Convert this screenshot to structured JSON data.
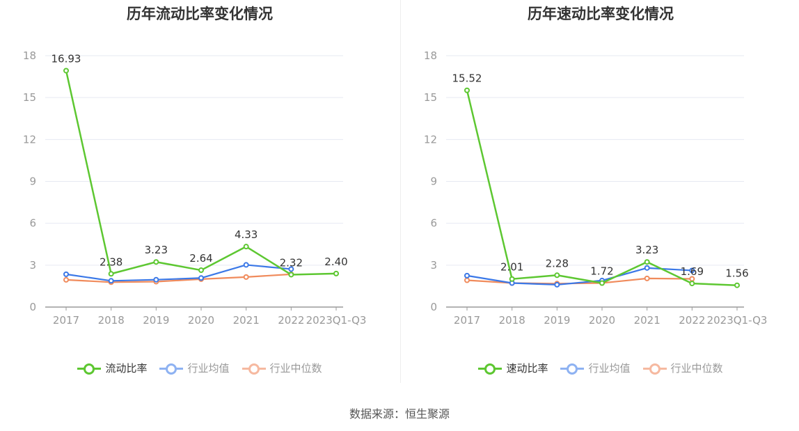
{
  "charts": [
    {
      "title": "历年流动比率变化情况",
      "legend": [
        "流动比率",
        "行业均值",
        "行业中位数"
      ]
    },
    {
      "title": "历年速动比率变化情况",
      "legend": [
        "速动比率",
        "行业均值",
        "行业中位数"
      ]
    }
  ],
  "colors": {
    "primary": "#5dc731",
    "avg": "#3b78e7",
    "median": "#f08b5c",
    "legend_avg": "#8eb2f2",
    "legend_median": "#f6b9a0"
  },
  "source_text": "数据来源：恒生聚源",
  "chart_data": [
    {
      "type": "line",
      "title": "历年流动比率变化情况",
      "categories": [
        "2017",
        "2018",
        "2019",
        "2020",
        "2021",
        "2022",
        "2023Q1-Q3"
      ],
      "y_ticks": [
        "0",
        "3",
        "6",
        "9",
        "12",
        "15",
        "18"
      ],
      "ylim": [
        0,
        18
      ],
      "grid": true,
      "legend_position": "bottom",
      "series": [
        {
          "name": "流动比率",
          "values": [
            16.93,
            2.38,
            3.23,
            2.64,
            4.33,
            2.32,
            2.4
          ],
          "labels": [
            "16.93",
            "2.38",
            "3.23",
            "2.64",
            "4.33",
            "2.32",
            "2.40"
          ]
        },
        {
          "name": "行业均值",
          "values": [
            2.35,
            1.88,
            1.96,
            2.08,
            3.02,
            2.72,
            null
          ]
        },
        {
          "name": "行业中位数",
          "values": [
            1.95,
            1.78,
            1.82,
            2.0,
            2.15,
            2.35,
            null
          ]
        }
      ]
    },
    {
      "type": "line",
      "title": "历年速动比率变化情况",
      "categories": [
        "2017",
        "2018",
        "2019",
        "2020",
        "2021",
        "2022",
        "2023Q1-Q3"
      ],
      "y_ticks": [
        "0",
        "3",
        "6",
        "9",
        "12",
        "15",
        "18"
      ],
      "ylim": [
        0,
        18
      ],
      "grid": true,
      "legend_position": "bottom",
      "series": [
        {
          "name": "速动比率",
          "values": [
            15.52,
            2.01,
            2.28,
            1.72,
            3.23,
            1.69,
            1.56
          ],
          "labels": [
            "15.52",
            "2.01",
            "2.28",
            "1.72",
            "3.23",
            "1.69",
            "1.56"
          ]
        },
        {
          "name": "行业均值",
          "values": [
            2.25,
            1.72,
            1.6,
            1.9,
            2.8,
            2.62,
            null
          ]
        },
        {
          "name": "行业中位数",
          "values": [
            1.92,
            1.72,
            1.68,
            1.72,
            2.05,
            2.02,
            null
          ]
        }
      ]
    }
  ]
}
